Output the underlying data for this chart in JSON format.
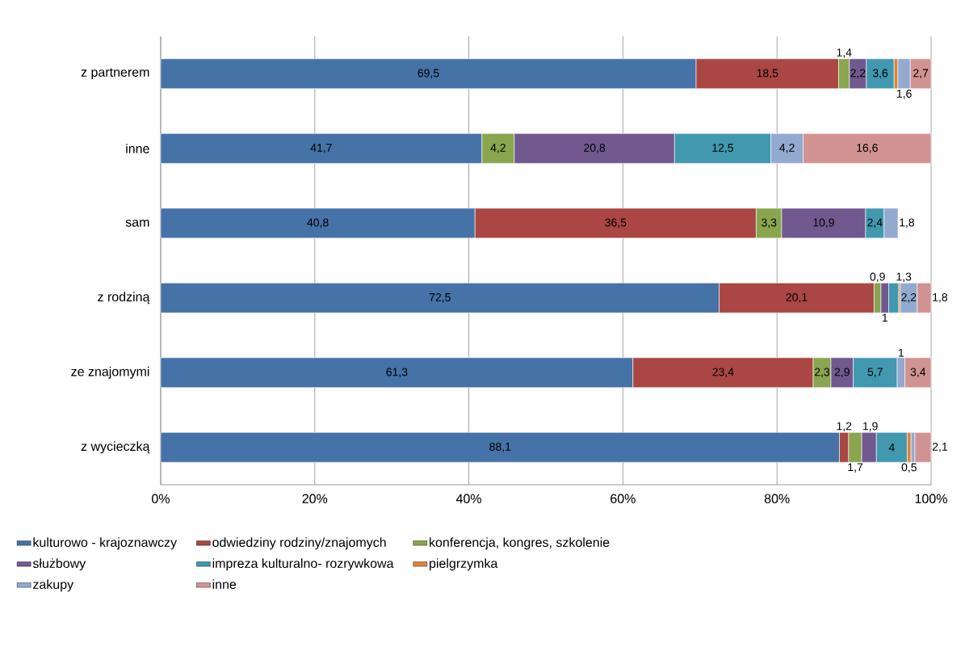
{
  "chart_data": {
    "type": "bar",
    "orientation": "horizontal",
    "stacked": true,
    "categories": [
      "z partnerem",
      "inne",
      "sam",
      "z rodziną",
      "ze znajomymi",
      "z wycieczką"
    ],
    "series": [
      {
        "name": "kulturowo - krajoznawczy",
        "color": "#4572a7",
        "values": [
          69.5,
          41.7,
          40.8,
          72.5,
          61.3,
          88.1
        ],
        "value_labels": [
          "69,5",
          "41,7",
          "40,8",
          "72,5",
          "61,3",
          "88,1"
        ]
      },
      {
        "name": "odwiedziny rodziny/znajomych",
        "color": "#aa4643",
        "values": [
          18.5,
          null,
          36.5,
          20.1,
          23.4,
          1.2
        ],
        "value_labels": [
          "18,5",
          null,
          "36,5",
          "20,1",
          "23,4",
          "1,2"
        ]
      },
      {
        "name": "konferencja, kongres, szkolenie",
        "color": "#89a54e",
        "values": [
          1.4,
          4.2,
          3.3,
          0.9,
          2.3,
          1.7
        ],
        "value_labels": [
          "1,4",
          "4,2",
          "3,3",
          "0,9",
          "2,3",
          "1,7"
        ]
      },
      {
        "name": "służbowy",
        "color": "#71588f",
        "values": [
          2.2,
          20.8,
          10.9,
          1,
          2.9,
          1.9
        ],
        "value_labels": [
          "2,2",
          "20,8",
          "10,9",
          "1",
          "2,9",
          "1,9"
        ]
      },
      {
        "name": "impreza kulturalno- rozrywkowa",
        "color": "#4198af",
        "values": [
          3.6,
          12.5,
          2.4,
          1.3,
          5.7,
          4
        ],
        "value_labels": [
          "3,6",
          "12,5",
          "2,4",
          "1,3",
          "5,7",
          "4"
        ]
      },
      {
        "name": "pielgrzymka",
        "color": "#db843d",
        "values": [
          0.5,
          null,
          null,
          0.2,
          null,
          0.5
        ],
        "value_labels": [
          null,
          null,
          null,
          null,
          null,
          "0,5"
        ]
      },
      {
        "name": "zakupy",
        "color": "#93a9cf",
        "values": [
          1.6,
          4.2,
          1.8,
          2.2,
          1,
          0.5
        ],
        "value_labels": [
          "1,6",
          "4,2",
          "1,8",
          "2,2",
          "1",
          null
        ]
      },
      {
        "name": "inne",
        "color": "#d19392",
        "values": [
          2.7,
          16.6,
          null,
          1.8,
          3.4,
          2.1
        ],
        "value_labels": [
          "2,7",
          "16,6",
          null,
          "1,8",
          "3,4",
          "2,1"
        ]
      }
    ],
    "xlim": [
      0,
      100
    ],
    "xticks": [
      {
        "value": 0,
        "label": "0%"
      },
      {
        "value": 20,
        "label": "20%"
      },
      {
        "value": 40,
        "label": "40%"
      },
      {
        "value": 60,
        "label": "60%"
      },
      {
        "value": 80,
        "label": "80%"
      },
      {
        "value": 100,
        "label": "100%"
      }
    ],
    "grid": "x",
    "legend": "bottom"
  }
}
